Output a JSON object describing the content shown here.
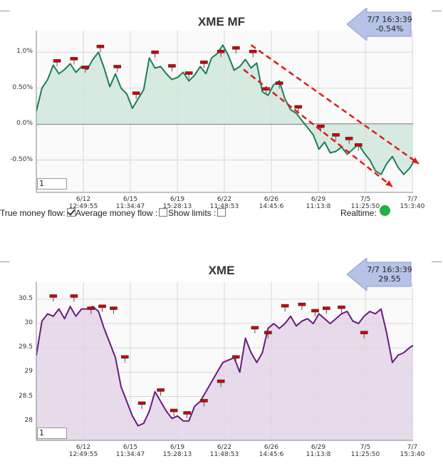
{
  "colors": {
    "mf_line": "#1a7f55",
    "mf_fill": "#cfe6dc",
    "px_line": "#6a1a7f",
    "px_fill": "#e3d3e6",
    "trend": "#e01a1a",
    "marker": "#cc0000",
    "grid": "#d8d8d8",
    "tooltip": "#b6c2e6",
    "realtime": "#1fb141"
  },
  "controls": {
    "true_mf": "True money flow:",
    "avg_mf": "Average money flow :",
    "show_limits": "Show limits :",
    "realtime": "Realtime:"
  },
  "chart_data": [
    {
      "type": "line",
      "title": "XME MF",
      "tooltip": {
        "date": "7/7 16:3:39",
        "value": "-0.54%"
      },
      "input_value": "1",
      "x_ticks": [
        {
          "top": "6/12",
          "bottom": "12:49:55"
        },
        {
          "top": "6/15",
          "bottom": "11:34:47"
        },
        {
          "top": "6/19",
          "bottom": "15:28:13"
        },
        {
          "top": "6/22",
          "bottom": "11:48:53"
        },
        {
          "top": "6/26",
          "bottom": "14:45:6"
        },
        {
          "top": "6/29",
          "bottom": "11:13:8"
        },
        {
          "top": "7/5",
          "bottom": "11:25:50"
        },
        {
          "top": "7/7",
          "bottom": "15:3:40"
        }
      ],
      "y_ticks": [
        "1.0%",
        "0.50%",
        "0.0%",
        "-0.50%"
      ],
      "y_tick_values": [
        1.0,
        0.5,
        0.0,
        -0.5
      ],
      "ylim": [
        -0.95,
        1.3
      ],
      "x_units": "session index (0 = 6/9 open, 20 = 7/7 close)",
      "xlim": [
        0,
        20
      ],
      "series": [
        {
          "x": [
            0,
            0.3,
            0.6,
            0.9,
            1.2,
            1.5,
            1.8,
            2.1,
            2.4,
            2.7,
            3.0,
            3.3,
            3.6,
            3.9,
            4.2,
            4.5,
            4.8,
            5.1,
            5.4,
            5.7,
            6.0,
            6.3,
            6.6,
            6.9,
            7.2,
            7.5,
            7.8,
            8.1,
            8.4,
            8.7,
            9.0,
            9.3,
            9.6,
            9.9,
            10.2,
            10.5,
            10.8,
            11.1,
            11.4,
            11.7,
            12.0,
            12.3,
            12.6,
            12.9,
            13.2,
            13.5,
            13.8,
            14.1,
            14.4,
            14.7,
            15.0,
            15.3,
            15.6,
            15.9,
            16.2,
            16.5,
            16.8,
            17.1,
            17.4,
            17.7,
            18.0,
            18.3,
            18.6,
            18.9,
            19.2,
            19.5,
            19.8,
            20.0
          ],
          "values": [
            0.18,
            0.5,
            0.62,
            0.82,
            0.7,
            0.76,
            0.84,
            0.72,
            0.8,
            0.76,
            0.9,
            1.0,
            0.78,
            0.52,
            0.7,
            0.5,
            0.42,
            0.22,
            0.35,
            0.48,
            0.92,
            0.78,
            0.8,
            0.7,
            0.62,
            0.65,
            0.72,
            0.6,
            0.68,
            0.8,
            0.7,
            0.92,
            0.98,
            1.1,
            0.95,
            0.75,
            0.8,
            0.9,
            0.78,
            0.85,
            0.45,
            0.4,
            0.55,
            0.6,
            0.35,
            0.2,
            0.15,
            0.05,
            -0.05,
            -0.15,
            -0.35,
            -0.25,
            -0.4,
            -0.38,
            -0.32,
            -0.42,
            -0.35,
            -0.28,
            -0.4,
            -0.5,
            -0.65,
            -0.7,
            -0.55,
            -0.45,
            -0.6,
            -0.7,
            -0.62,
            -0.54
          ]
        }
      ],
      "markers": [
        {
          "x": 1.1,
          "y": 0.87
        },
        {
          "x": 2.0,
          "y": 0.9
        },
        {
          "x": 2.6,
          "y": 0.78
        },
        {
          "x": 3.4,
          "y": 1.07
        },
        {
          "x": 4.3,
          "y": 0.79
        },
        {
          "x": 5.3,
          "y": 0.42
        },
        {
          "x": 6.3,
          "y": 0.99
        },
        {
          "x": 7.2,
          "y": 0.8
        },
        {
          "x": 8.1,
          "y": 0.7
        },
        {
          "x": 8.9,
          "y": 0.85
        },
        {
          "x": 9.8,
          "y": 1.0
        },
        {
          "x": 10.6,
          "y": 1.05
        },
        {
          "x": 11.5,
          "y": 1.0
        },
        {
          "x": 12.2,
          "y": 0.48
        },
        {
          "x": 12.9,
          "y": 0.56
        },
        {
          "x": 13.9,
          "y": 0.23
        },
        {
          "x": 15.1,
          "y": -0.04
        },
        {
          "x": 15.9,
          "y": -0.16
        },
        {
          "x": 16.6,
          "y": -0.21
        },
        {
          "x": 17.1,
          "y": -0.3
        }
      ],
      "trend_lines": [
        {
          "x1": 11.4,
          "y1": 1.1,
          "x2": 20.3,
          "y2": -0.55
        },
        {
          "x1": 11.0,
          "y1": 0.76,
          "x2": 18.9,
          "y2": -0.87
        }
      ]
    },
    {
      "type": "line",
      "title": "XME",
      "tooltip": {
        "date": "7/7 16:3:39",
        "value": "29.55"
      },
      "input_value": "1",
      "x_ticks": [
        {
          "top": "6/12",
          "bottom": "12:49:55"
        },
        {
          "top": "6/15",
          "bottom": "11:34:47"
        },
        {
          "top": "6/19",
          "bottom": "15:28:13"
        },
        {
          "top": "6/22",
          "bottom": "11:48:53"
        },
        {
          "top": "6/26",
          "bottom": "14:45:6"
        },
        {
          "top": "6/29",
          "bottom": "11:13:8"
        },
        {
          "top": "7/5",
          "bottom": "11:25:50"
        },
        {
          "top": "7/7",
          "bottom": "15:3:40"
        }
      ],
      "y_ticks": [
        "30.5",
        "30",
        "29.5",
        "29",
        "28.5",
        "28"
      ],
      "y_tick_values": [
        30.5,
        30,
        29.5,
        29,
        28.5,
        28
      ],
      "ylim": [
        27.6,
        30.85
      ],
      "x_units": "session index (0 = 6/9 open, 20 = 7/7 close)",
      "xlim": [
        0,
        20
      ],
      "series": [
        {
          "x": [
            0,
            0.3,
            0.6,
            0.9,
            1.2,
            1.5,
            1.8,
            2.1,
            2.4,
            2.7,
            3.0,
            3.3,
            3.6,
            3.9,
            4.2,
            4.5,
            4.8,
            5.1,
            5.4,
            5.7,
            6.0,
            6.3,
            6.6,
            6.9,
            7.2,
            7.5,
            7.8,
            8.1,
            8.4,
            8.7,
            9.0,
            9.3,
            9.6,
            9.9,
            10.2,
            10.5,
            10.8,
            11.1,
            11.4,
            11.7,
            12.0,
            12.3,
            12.6,
            12.9,
            13.2,
            13.5,
            13.8,
            14.1,
            14.4,
            14.7,
            15.0,
            15.3,
            15.6,
            15.9,
            16.2,
            16.5,
            16.8,
            17.1,
            17.4,
            17.7,
            18.0,
            18.3,
            18.6,
            18.9,
            19.2,
            19.5,
            19.8,
            20.0
          ],
          "values": [
            29.35,
            30.05,
            30.2,
            30.15,
            30.3,
            30.1,
            30.35,
            30.15,
            30.3,
            30.3,
            30.35,
            30.25,
            29.9,
            29.6,
            29.3,
            28.7,
            28.4,
            28.1,
            27.9,
            27.95,
            28.2,
            28.6,
            28.4,
            28.2,
            28.05,
            28.1,
            28.0,
            28.0,
            28.3,
            28.4,
            28.6,
            28.8,
            29.0,
            29.2,
            29.25,
            29.3,
            29.0,
            29.7,
            29.4,
            29.2,
            29.4,
            29.9,
            30.0,
            29.9,
            30.0,
            30.15,
            29.95,
            30.05,
            30.1,
            30.0,
            30.2,
            30.1,
            30.0,
            30.1,
            30.2,
            30.25,
            30.05,
            30.0,
            30.15,
            30.25,
            30.2,
            30.3,
            29.8,
            29.2,
            29.35,
            29.4,
            29.5,
            29.55
          ]
        }
      ],
      "markers": [
        {
          "x": 0.9,
          "y": 30.55
        },
        {
          "x": 2.0,
          "y": 30.55
        },
        {
          "x": 2.9,
          "y": 30.3
        },
        {
          "x": 3.5,
          "y": 30.34
        },
        {
          "x": 4.1,
          "y": 30.3
        },
        {
          "x": 4.7,
          "y": 29.3
        },
        {
          "x": 5.6,
          "y": 28.35
        },
        {
          "x": 6.6,
          "y": 28.62
        },
        {
          "x": 7.3,
          "y": 28.2
        },
        {
          "x": 8.0,
          "y": 28.15
        },
        {
          "x": 8.9,
          "y": 28.4
        },
        {
          "x": 9.8,
          "y": 28.8
        },
        {
          "x": 10.6,
          "y": 29.3
        },
        {
          "x": 11.6,
          "y": 29.9
        },
        {
          "x": 12.3,
          "y": 29.8
        },
        {
          "x": 13.2,
          "y": 30.35
        },
        {
          "x": 14.1,
          "y": 30.38
        },
        {
          "x": 14.8,
          "y": 30.25
        },
        {
          "x": 15.4,
          "y": 30.3
        },
        {
          "x": 16.2,
          "y": 30.32
        },
        {
          "x": 17.4,
          "y": 29.8
        }
      ]
    }
  ]
}
